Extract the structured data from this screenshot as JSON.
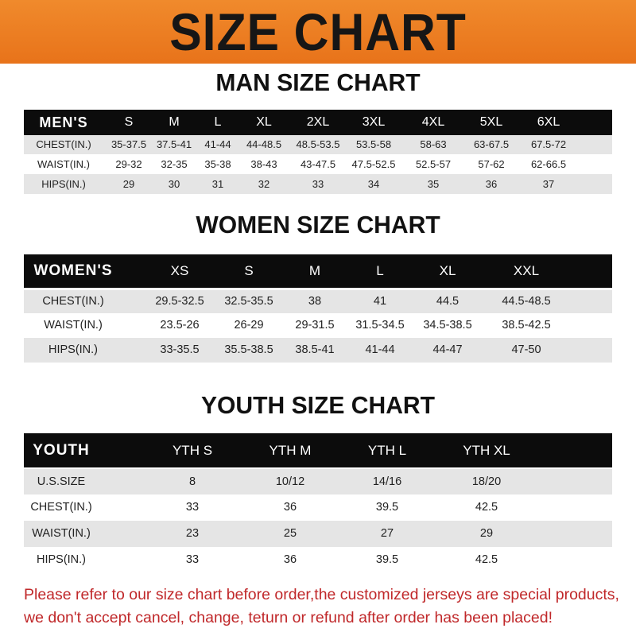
{
  "banner": {
    "title": "SIZE CHART",
    "color": "#ec7d22"
  },
  "tables": [
    {
      "title": "MAN SIZE CHART",
      "label": "MEN'S",
      "sizes": [
        "S",
        "M",
        "L",
        "XL",
        "2XL",
        "3XL",
        "4XL",
        "5XL",
        "6XL"
      ],
      "rows": [
        {
          "label": "CHEST(IN.)",
          "values": [
            "35-37.5",
            "37.5-41",
            "41-44",
            "44-48.5",
            "48.5-53.5",
            "53.5-58",
            "58-63",
            "63-67.5",
            "67.5-72"
          ]
        },
        {
          "label": "WAIST(IN.)",
          "values": [
            "29-32",
            "32-35",
            "35-38",
            "38-43",
            "43-47.5",
            "47.5-52.5",
            "52.5-57",
            "57-62",
            "62-66.5"
          ]
        },
        {
          "label": "HIPS(IN.)",
          "values": [
            "29",
            "30",
            "31",
            "32",
            "33",
            "34",
            "35",
            "36",
            "37"
          ]
        }
      ]
    },
    {
      "title": "WOMEN SIZE CHART",
      "label": "WOMEN'S",
      "sizes": [
        "XS",
        "S",
        "M",
        "L",
        "XL",
        "XXL"
      ],
      "rows": [
        {
          "label": "CHEST(IN.)",
          "values": [
            "29.5-32.5",
            "32.5-35.5",
            "38",
            "41",
            "44.5",
            "44.5-48.5"
          ]
        },
        {
          "label": "WAIST(IN.)",
          "values": [
            "23.5-26",
            "26-29",
            "29-31.5",
            "31.5-34.5",
            "34.5-38.5",
            "38.5-42.5"
          ]
        },
        {
          "label": "HIPS(IN.)",
          "values": [
            "33-35.5",
            "35.5-38.5",
            "38.5-41",
            "41-44",
            "44-47",
            "47-50"
          ]
        }
      ]
    },
    {
      "title": "YOUTH SIZE CHART",
      "label": "YOUTH",
      "sizes": [
        "YTH S",
        "YTH M",
        "YTH L",
        "YTH XL"
      ],
      "rows": [
        {
          "label": "U.S.SIZE",
          "values": [
            "8",
            "10/12",
            "14/16",
            "18/20"
          ]
        },
        {
          "label": "CHEST(IN.)",
          "values": [
            "33",
            "36",
            "39.5",
            "42.5"
          ]
        },
        {
          "label": "WAIST(IN.)",
          "values": [
            "23",
            "25",
            "27",
            "29"
          ]
        },
        {
          "label": "HIPS(IN.)",
          "values": [
            "33",
            "36",
            "39.5",
            "42.5"
          ]
        }
      ]
    }
  ],
  "footer": {
    "line1": "Please refer to our size chart before order,the customized jerseys are special products,",
    "line2": "we don't accept cancel, change, teturn or refund after order has been placed!",
    "color": "#c0282a"
  }
}
